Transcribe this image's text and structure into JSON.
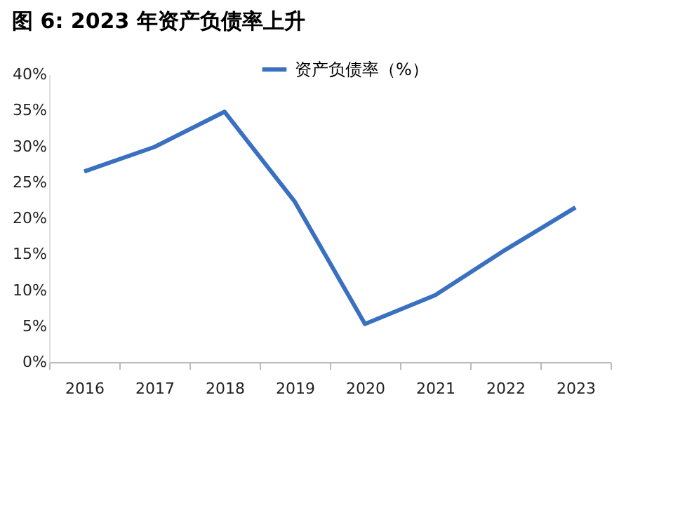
{
  "chart_data": {
    "type": "line",
    "title": "图 6:   2023 年资产负债率上升",
    "categories": [
      "2016",
      "2017",
      "2018",
      "2019",
      "2020",
      "2021",
      "2022",
      "2023"
    ],
    "series": [
      {
        "name": "资产负债率（%）",
        "color": "#3a70c0",
        "values": [
          26.5,
          29.9,
          34.8,
          22.3,
          5.3,
          9.3,
          15.6,
          21.5
        ]
      }
    ],
    "ylim": [
      0,
      40
    ],
    "yticks": [
      {
        "value": 0,
        "label": "0%"
      },
      {
        "value": 5,
        "label": "5%"
      },
      {
        "value": 10,
        "label": "10%"
      },
      {
        "value": 15,
        "label": "15%"
      },
      {
        "value": 20,
        "label": "20%"
      },
      {
        "value": 25,
        "label": "25%"
      },
      {
        "value": 30,
        "label": "30%"
      },
      {
        "value": 35,
        "label": "35%"
      },
      {
        "value": 40,
        "label": "40%"
      }
    ],
    "grid": false,
    "legend": "top",
    "marker": "none",
    "line_style": "solid"
  }
}
